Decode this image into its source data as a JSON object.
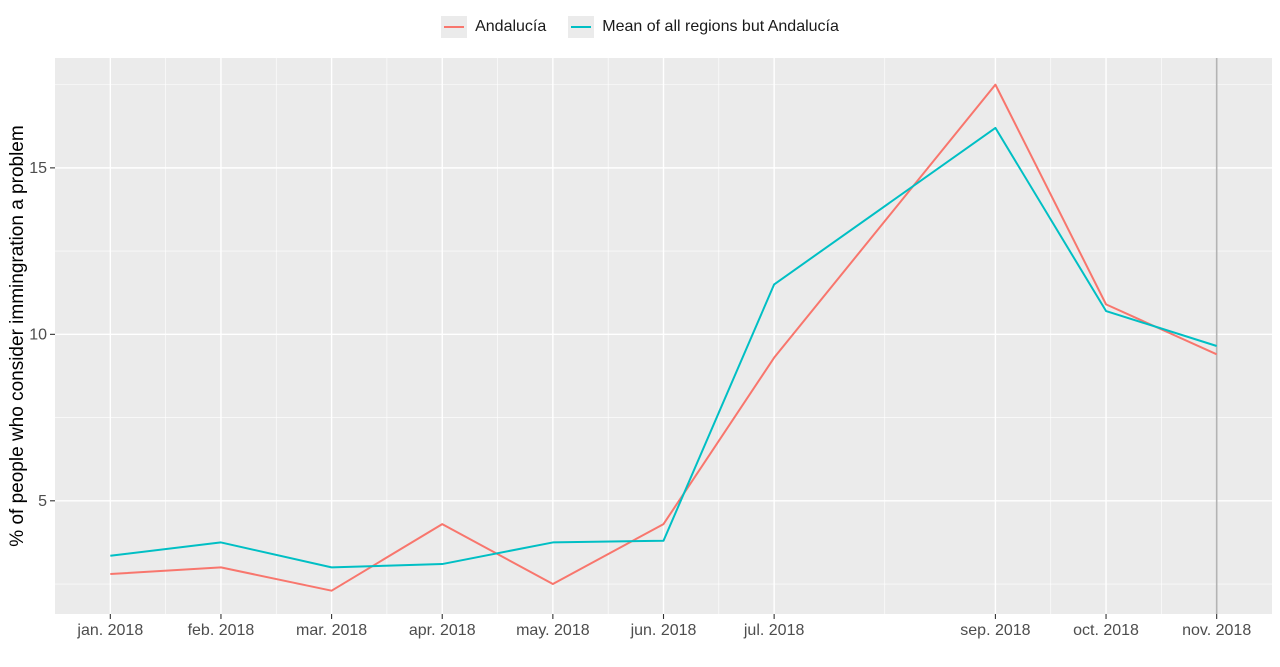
{
  "chart_data": {
    "type": "line",
    "ylabel": "% of people who consider immingration a problem",
    "x": [
      "jan. 2018",
      "feb. 2018",
      "mar. 2018",
      "apr. 2018",
      "may. 2018",
      "jun. 2018",
      "jul. 2018",
      "sep. 2018",
      "oct. 2018",
      "nov. 2018"
    ],
    "x_month_index": [
      1,
      2,
      3,
      4,
      5,
      6,
      7,
      9,
      10,
      11
    ],
    "xlim_month_index": [
      0.5,
      11.5
    ],
    "y_ticks": [
      5,
      10,
      15
    ],
    "ylim": [
      1.6,
      18.3
    ],
    "grid": true,
    "vline_at": "nov. 2018",
    "legend_position": "top",
    "series": [
      {
        "name": "Andalucía",
        "color": "#F8766D",
        "values": [
          2.8,
          3.0,
          2.3,
          4.3,
          2.5,
          4.3,
          9.3,
          17.5,
          10.9,
          9.4
        ]
      },
      {
        "name": "Mean of all regions but Andalucía",
        "color": "#00BFC4",
        "values": [
          3.35,
          3.75,
          3.0,
          3.1,
          3.75,
          3.8,
          11.5,
          16.2,
          10.7,
          9.65
        ]
      }
    ]
  }
}
